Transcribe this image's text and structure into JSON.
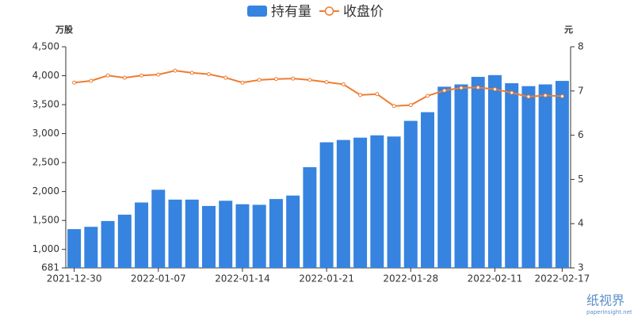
{
  "chart_data": {
    "type": "bar-line",
    "legend_position": "top",
    "ylabel": "万股",
    "y2label": "元",
    "categories": [
      "2021-12-30",
      null,
      null,
      null,
      null,
      "2022-01-07",
      null,
      null,
      null,
      null,
      "2022-01-14",
      null,
      null,
      null,
      null,
      "2022-01-21",
      null,
      null,
      null,
      null,
      "2022-01-28",
      null,
      null,
      null,
      null,
      "2022-02-11",
      null,
      null,
      null,
      "2022-02-17"
    ],
    "series": [
      {
        "name": "持有量",
        "type": "bar",
        "color": "#3683e0",
        "values": [
          1350,
          1390,
          1490,
          1600,
          1810,
          2030,
          1860,
          1860,
          1750,
          1840,
          1780,
          1770,
          1870,
          1930,
          2420,
          2850,
          2890,
          2930,
          2970,
          2950,
          3220,
          3370,
          3810,
          3850,
          3980,
          4010,
          3870,
          3820,
          3850,
          3910
        ]
      },
      {
        "name": "收盘价",
        "type": "line",
        "axis": "y2",
        "color": "#ee7d31",
        "values": [
          7.19,
          7.23,
          7.35,
          7.3,
          7.35,
          7.37,
          7.46,
          7.41,
          7.38,
          7.3,
          7.19,
          7.25,
          7.27,
          7.28,
          7.25,
          7.2,
          7.15,
          6.91,
          6.93,
          6.66,
          6.68,
          6.89,
          7.01,
          7.07,
          7.08,
          7.04,
          6.96,
          6.87,
          6.9,
          6.88
        ]
      }
    ],
    "ylim": [
      681,
      4500
    ],
    "yticks": [
      681,
      {
        "value": 1000,
        "label": "1,000"
      },
      {
        "value": 1500,
        "label": "1,500"
      },
      {
        "value": 2000,
        "label": "2,000"
      },
      {
        "value": 2500,
        "label": "2,500"
      },
      {
        "value": 3000,
        "label": "3,000"
      },
      {
        "value": 3500,
        "label": "3,500"
      },
      {
        "value": 4000,
        "label": "4,000"
      },
      {
        "value": 4500,
        "label": "4,500"
      }
    ],
    "y2lim": [
      3,
      8
    ],
    "y2ticks": [
      3,
      4,
      5,
      6,
      7,
      8
    ],
    "grid": false
  },
  "watermark": {
    "title": "纸视界",
    "url": "paperinsight.net"
  }
}
